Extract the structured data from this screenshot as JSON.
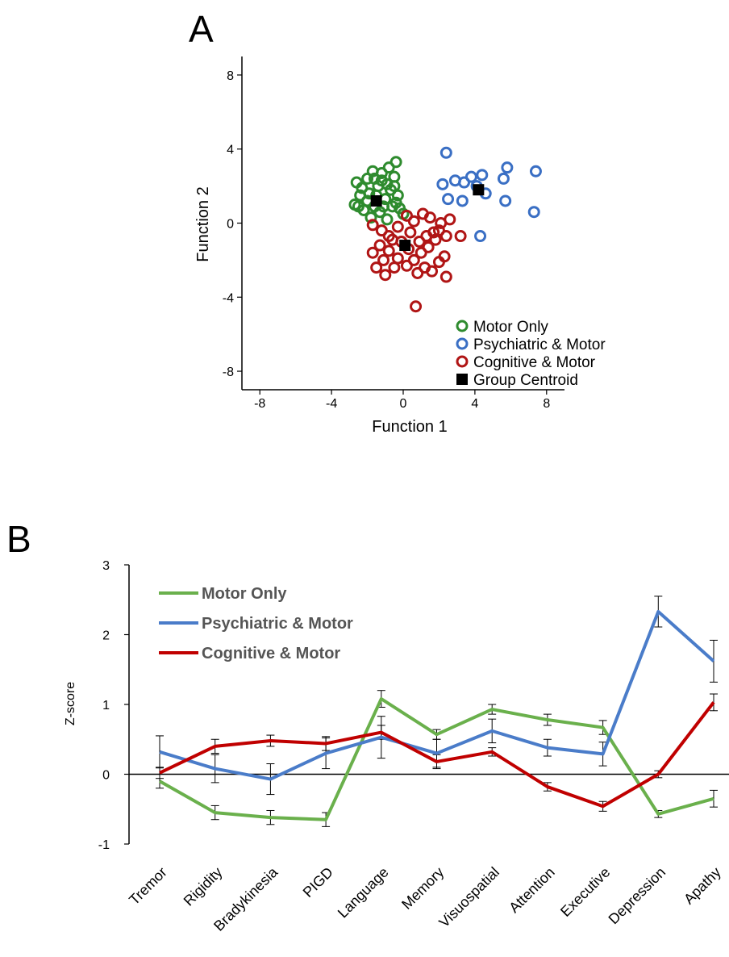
{
  "chart_data": [
    {
      "panel": "A",
      "type": "scatter",
      "xlabel": "Function 1",
      "ylabel": "Function 2",
      "xlim": [
        -9,
        9
      ],
      "ylim": [
        -9,
        9
      ],
      "xticks": [
        "-8",
        "-4",
        "0",
        "4",
        "8"
      ],
      "yticks": [
        "8",
        "4",
        "0",
        "-4",
        "-8"
      ],
      "legend_position": "bottom-right",
      "series": [
        {
          "name": "Motor Only",
          "color": "#2e8b2e",
          "marker": "open-circle",
          "points": [
            [
              -2.6,
              2.2
            ],
            [
              -2.3,
              1.9
            ],
            [
              -2.0,
              2.4
            ],
            [
              -1.7,
              2.8
            ],
            [
              -1.2,
              2.7
            ],
            [
              -0.8,
              3.0
            ],
            [
              -0.4,
              3.3
            ],
            [
              -0.5,
              2.5
            ],
            [
              -0.9,
              2.1
            ],
            [
              -1.4,
              2.0
            ],
            [
              -1.9,
              1.6
            ],
            [
              -2.4,
              1.5
            ],
            [
              -2.7,
              1.0
            ],
            [
              -2.2,
              0.7
            ],
            [
              -1.6,
              0.9
            ],
            [
              -1.0,
              1.3
            ],
            [
              -0.7,
              1.8
            ],
            [
              -0.3,
              1.5
            ],
            [
              -0.6,
              0.9
            ],
            [
              -1.3,
              0.6
            ],
            [
              -1.8,
              0.3
            ],
            [
              -0.2,
              0.8
            ],
            [
              0.0,
              0.5
            ],
            [
              -0.9,
              0.2
            ],
            [
              -2.0,
              1.2
            ],
            [
              -1.5,
              1.5
            ],
            [
              -0.5,
              2.0
            ],
            [
              -1.2,
              2.3
            ],
            [
              -2.5,
              0.9
            ],
            [
              -1.1,
              0.9
            ],
            [
              -0.4,
              1.1
            ],
            [
              -1.6,
              2.4
            ]
          ]
        },
        {
          "name": "Psychiatric & Motor",
          "color": "#3a6fc4",
          "marker": "open-circle",
          "points": [
            [
              2.4,
              3.8
            ],
            [
              2.2,
              2.1
            ],
            [
              2.9,
              2.3
            ],
            [
              3.4,
              2.2
            ],
            [
              3.8,
              2.5
            ],
            [
              4.4,
              2.6
            ],
            [
              4.1,
              2.0
            ],
            [
              4.6,
              1.6
            ],
            [
              5.8,
              3.0
            ],
            [
              5.6,
              2.4
            ],
            [
              5.7,
              1.2
            ],
            [
              7.4,
              2.8
            ],
            [
              7.3,
              0.6
            ],
            [
              3.3,
              1.2
            ],
            [
              2.5,
              1.3
            ],
            [
              4.3,
              -0.7
            ]
          ]
        },
        {
          "name": "Cognitive & Motor",
          "color": "#b01515",
          "marker": "open-circle",
          "points": [
            [
              -1.7,
              -0.1
            ],
            [
              -1.2,
              -0.4
            ],
            [
              -0.8,
              -0.7
            ],
            [
              -0.3,
              -0.2
            ],
            [
              0.2,
              0.4
            ],
            [
              0.6,
              0.1
            ],
            [
              1.1,
              0.5
            ],
            [
              1.5,
              0.3
            ],
            [
              2.1,
              0.0
            ],
            [
              2.6,
              0.2
            ],
            [
              2.4,
              -0.7
            ],
            [
              3.2,
              -0.7
            ],
            [
              1.8,
              -0.9
            ],
            [
              1.4,
              -1.3
            ],
            [
              1.0,
              -1.6
            ],
            [
              0.6,
              -2.0
            ],
            [
              0.2,
              -2.3
            ],
            [
              -0.3,
              -1.9
            ],
            [
              -0.8,
              -1.5
            ],
            [
              -1.3,
              -1.2
            ],
            [
              -1.7,
              -1.6
            ],
            [
              -1.5,
              -2.4
            ],
            [
              -1.0,
              -2.8
            ],
            [
              -0.5,
              -2.4
            ],
            [
              0.8,
              -2.7
            ],
            [
              1.2,
              -2.4
            ],
            [
              1.6,
              -2.6
            ],
            [
              2.0,
              -2.1
            ],
            [
              2.3,
              -1.8
            ],
            [
              2.4,
              -2.9
            ],
            [
              0.7,
              -4.5
            ],
            [
              0.4,
              -0.5
            ],
            [
              -0.1,
              -1.0
            ],
            [
              0.9,
              -1.0
            ],
            [
              1.7,
              -0.5
            ],
            [
              -0.6,
              -0.9
            ],
            [
              0.3,
              -1.4
            ],
            [
              1.3,
              -0.7
            ],
            [
              -1.1,
              -2.0
            ],
            [
              2.0,
              -0.4
            ]
          ]
        },
        {
          "name": "Group Centroid",
          "color": "#000000",
          "marker": "filled-square",
          "points": [
            [
              -1.5,
              1.2
            ],
            [
              4.2,
              1.8
            ],
            [
              0.1,
              -1.2
            ]
          ]
        }
      ]
    },
    {
      "panel": "B",
      "type": "line",
      "ylabel": "Z-score",
      "ylim": [
        -1,
        3
      ],
      "yticks": [
        "3",
        "2",
        "1",
        "0",
        "-1"
      ],
      "categories": [
        "Tremor",
        "Rigidity",
        "Bradykinesia",
        "PIGD",
        "Language",
        "Memory",
        "Visuospatial",
        "Attention",
        "Executive",
        "Depression",
        "Apathy"
      ],
      "legend_position": "top-left",
      "series": [
        {
          "name": "Motor Only",
          "color": "#6ab04c",
          "values": [
            -0.1,
            -0.55,
            -0.62,
            -0.65,
            1.08,
            0.57,
            0.93,
            0.78,
            0.67,
            -0.57,
            -0.35
          ],
          "errors": [
            0.1,
            0.1,
            0.1,
            0.1,
            0.12,
            0.07,
            0.07,
            0.08,
            0.1,
            0.05,
            0.12
          ]
        },
        {
          "name": "Psychiatric & Motor",
          "color": "#4a7cc9",
          "values": [
            0.32,
            0.08,
            -0.07,
            0.3,
            0.53,
            0.3,
            0.62,
            0.38,
            0.29,
            2.33,
            1.62
          ],
          "errors": [
            0.23,
            0.2,
            0.22,
            0.22,
            0.3,
            0.2,
            0.17,
            0.12,
            0.17,
            0.22,
            0.3
          ]
        },
        {
          "name": "Cognitive & Motor",
          "color": "#c00000",
          "values": [
            0.02,
            0.4,
            0.48,
            0.44,
            0.6,
            0.18,
            0.32,
            -0.18,
            -0.46,
            0.0,
            1.03
          ],
          "errors": [
            0.08,
            0.1,
            0.08,
            0.1,
            0.1,
            0.1,
            0.06,
            0.06,
            0.07,
            0.05,
            0.12
          ]
        }
      ]
    }
  ]
}
